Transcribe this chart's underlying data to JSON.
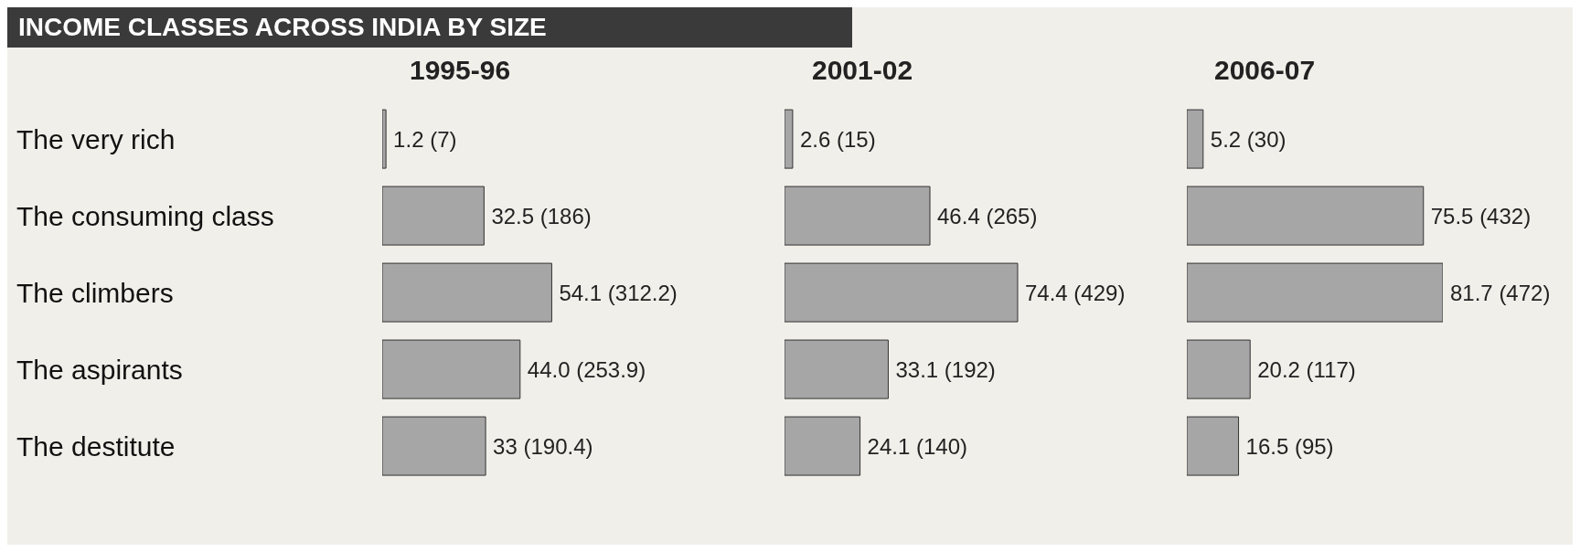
{
  "chart_data": [
    {
      "type": "bar",
      "orientation": "horizontal",
      "title": "INCOME CLASSES ACROSS INDIA BY SIZE",
      "subtitle": "1995-96",
      "tick_labels": "y",
      "categories": [
        "The very rich",
        "The consuming class",
        "The climbers",
        "The aspirants",
        "The destitute"
      ],
      "color": "#a6a6a6",
      "values": [
        1.2,
        32.5,
        54.1,
        44.0,
        33
      ],
      "value_labels": [
        "1.2 (7)",
        "32.5 (186)",
        "54.1 (312.2)",
        "44.0 (253.9)",
        "33 (190.4)"
      ]
    },
    {
      "type": "bar",
      "orientation": "horizontal",
      "subtitle": "2001-02",
      "tick_labels": false,
      "color": "#a6a6a6",
      "values": [
        2.6,
        46.4,
        74.4,
        33.1,
        24.1
      ],
      "value_labels": [
        "2.6 (15)",
        "46.4 (265)",
        "74.4 (429)",
        "33.1 (192)",
        "24.1 (140)"
      ]
    },
    {
      "type": "bar",
      "orientation": "horizontal",
      "subtitle": "2006-07",
      "tick_labels": false,
      "color": "#a6a6a6",
      "values": [
        5.2,
        75.5,
        81.7,
        20.2,
        16.5
      ],
      "value_labels": [
        "5.2 (30)",
        "75.5 (432)",
        "81.7 (472)",
        "20.2 (117)",
        "16.5 (95)"
      ]
    }
  ]
}
